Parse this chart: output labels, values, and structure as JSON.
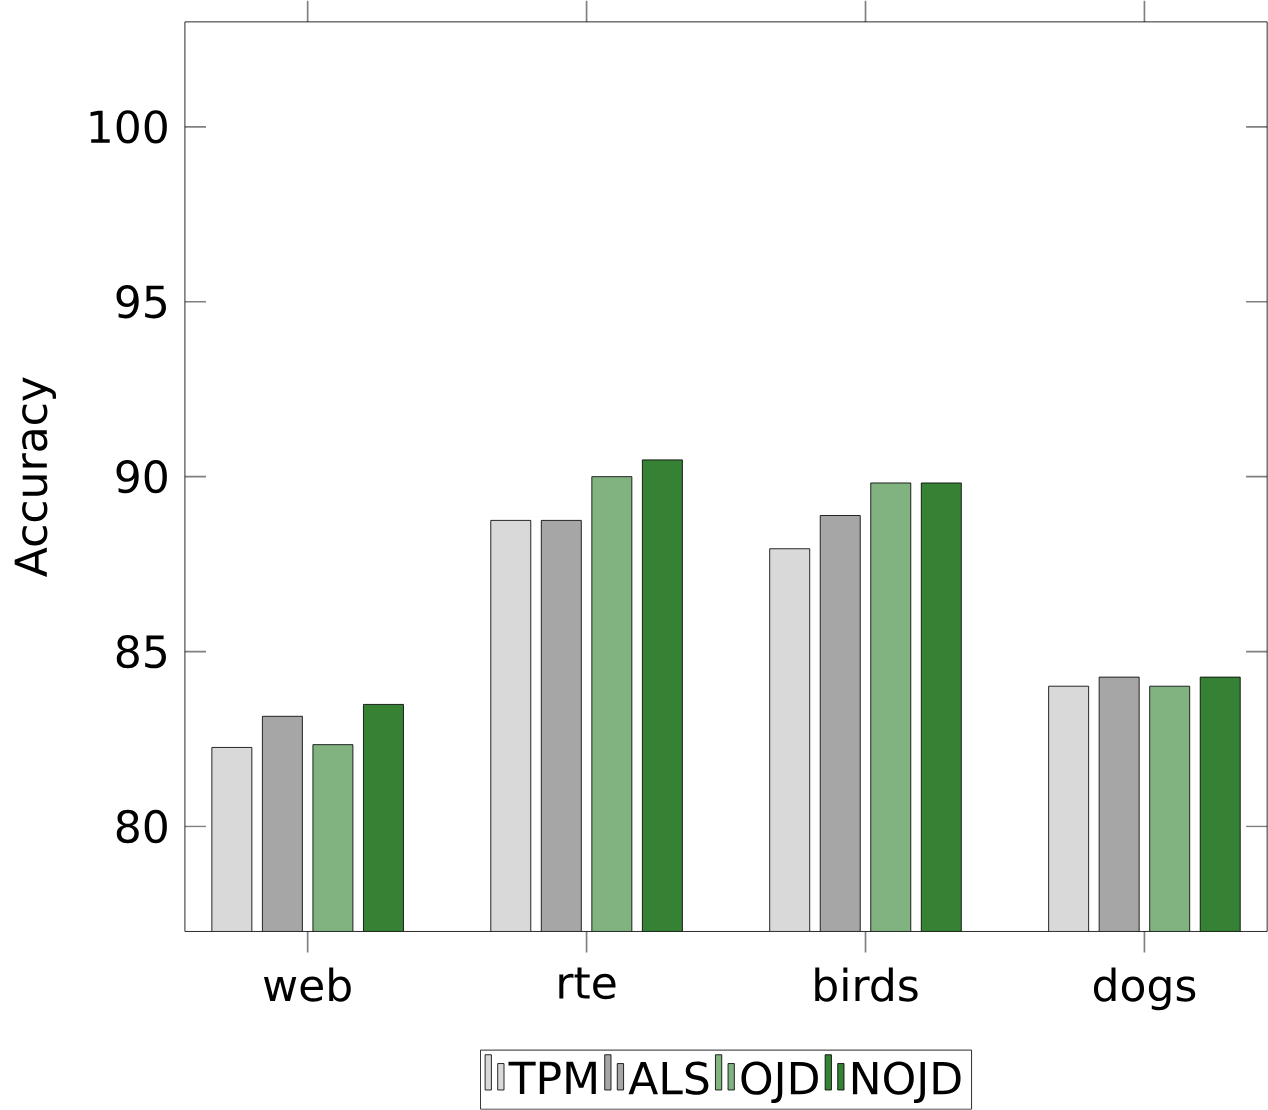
{
  "chart_data": {
    "type": "bar",
    "ylabel": "Accuracy",
    "categories": [
      "web",
      "rte",
      "birds",
      "dogs"
    ],
    "series": [
      {
        "name": "TPM",
        "color": "#d9d9d9",
        "values": [
          82.26,
          88.75,
          87.94,
          84.01
        ]
      },
      {
        "name": "ALS",
        "color": "#a6a6a6",
        "values": [
          83.15,
          88.75,
          88.89,
          84.27
        ]
      },
      {
        "name": "OJD",
        "color": "#80b380",
        "values": [
          82.34,
          90.0,
          89.82,
          84.01
        ]
      },
      {
        "name": "NOJD",
        "color": "#358235",
        "values": [
          83.49,
          90.48,
          89.82,
          84.27
        ]
      }
    ],
    "ylim": [
      77,
      103
    ],
    "yticks": [
      80,
      85,
      90,
      95,
      100
    ],
    "legend": "bottom"
  }
}
